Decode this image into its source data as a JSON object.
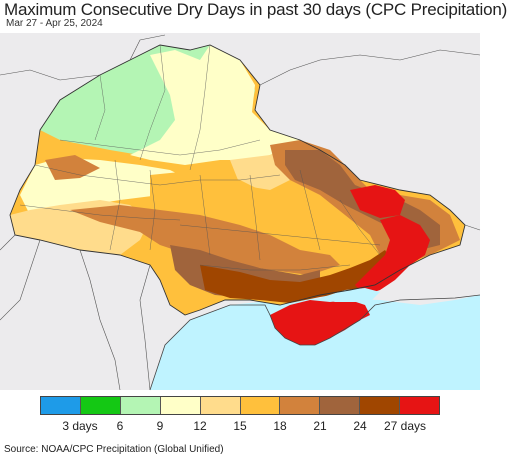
{
  "header": {
    "title": "Maximum Consecutive Dry Days in past 30 days (CPC Precipitation)",
    "date_range": "Mar 27 - Apr 25, 2024"
  },
  "legend": {
    "colors": [
      "#1e9be8",
      "#14c814",
      "#b4f5b4",
      "#ffffc8",
      "#ffdc8c",
      "#ffc03c",
      "#d2823c",
      "#a0643c",
      "#a04600",
      "#e61414"
    ],
    "labels": [
      "3 days",
      "6",
      "9",
      "12",
      "15",
      "18",
      "21",
      "24",
      "27 days"
    ]
  },
  "footer": {
    "source": "Source: NOAA/CPC Precipitation (Global Unified)"
  }
}
